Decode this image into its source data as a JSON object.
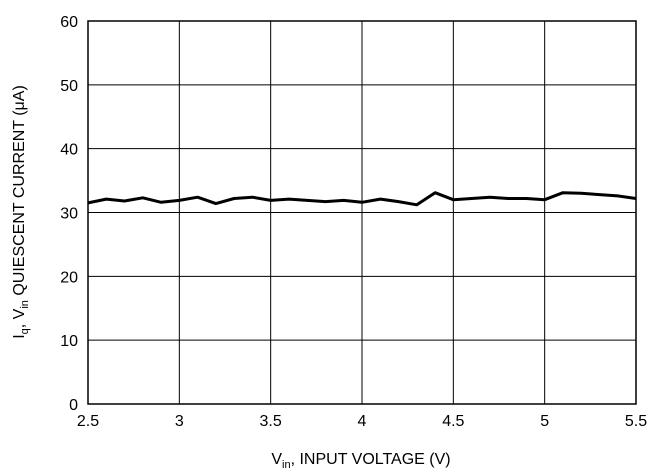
{
  "chart_data": {
    "type": "line",
    "xlabel": {
      "main": "V",
      "sub": "in",
      "rest": ", INPUT VOLTAGE (V)"
    },
    "ylabel": {
      "p1": "I",
      "s1": "q",
      "p2": ", V",
      "s2": "in",
      "p3": " QUIESCENT CURRENT (",
      "mu": "μ",
      "p4": "A)"
    },
    "xlim": [
      2.5,
      5.5
    ],
    "ylim": [
      0,
      60
    ],
    "xticks": [
      2.5,
      3,
      3.5,
      4,
      4.5,
      5,
      5.5
    ],
    "xtick_labels": [
      "2.5",
      "3",
      "3.5",
      "4",
      "4.5",
      "5",
      "5.5"
    ],
    "yticks": [
      0,
      10,
      20,
      30,
      40,
      50,
      60
    ],
    "ytick_labels": [
      "0",
      "10",
      "20",
      "30",
      "40",
      "50",
      "60"
    ],
    "grid": true,
    "series": [
      {
        "x": [
          2.5,
          2.6,
          2.7,
          2.8,
          2.9,
          3.0,
          3.1,
          3.2,
          3.3,
          3.4,
          3.5,
          3.6,
          3.7,
          3.8,
          3.9,
          4.0,
          4.1,
          4.2,
          4.3,
          4.4,
          4.5,
          4.6,
          4.7,
          4.8,
          4.9,
          5.0,
          5.1,
          5.2,
          5.3,
          5.4,
          5.5
        ],
        "y": [
          31.5,
          32.1,
          31.8,
          32.3,
          31.6,
          31.9,
          32.4,
          31.4,
          32.2,
          32.4,
          31.9,
          32.1,
          31.9,
          31.7,
          31.9,
          31.6,
          32.1,
          31.7,
          31.2,
          33.1,
          32.0,
          32.2,
          32.4,
          32.2,
          32.2,
          32.0,
          33.1,
          33.0,
          32.8,
          32.6,
          32.2
        ]
      }
    ]
  }
}
